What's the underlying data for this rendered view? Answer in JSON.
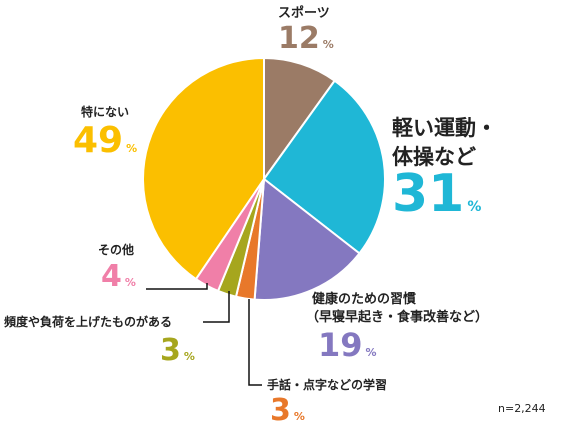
{
  "chart_data": {
    "type": "pie",
    "n_label": "n=2,244",
    "unit": "%",
    "slices": [
      {
        "label": "スポーツ",
        "value": 12,
        "color": "#9b7b66"
      },
      {
        "label": "軽い運動・体操など",
        "line1": "軽い運動・",
        "line2": "体操など",
        "value": 31,
        "color": "#1fb7d6"
      },
      {
        "label": "健康のための習慣（早寝早起き・食事改善など）",
        "line1": "健康のための習慣",
        "line2": "（早寝早起き・食事改善など）",
        "value": 19,
        "color": "#8478c0"
      },
      {
        "label": "手話・点字などの学習",
        "value": 3,
        "color": "#e8782a"
      },
      {
        "label": "頻度や負荷を上げたものがある",
        "value": 3,
        "color": "#a6a61e"
      },
      {
        "label": "その他",
        "value": 4,
        "color": "#f07fa8"
      },
      {
        "label": "特にない",
        "value": 49,
        "color": "#fbbf00"
      }
    ]
  }
}
